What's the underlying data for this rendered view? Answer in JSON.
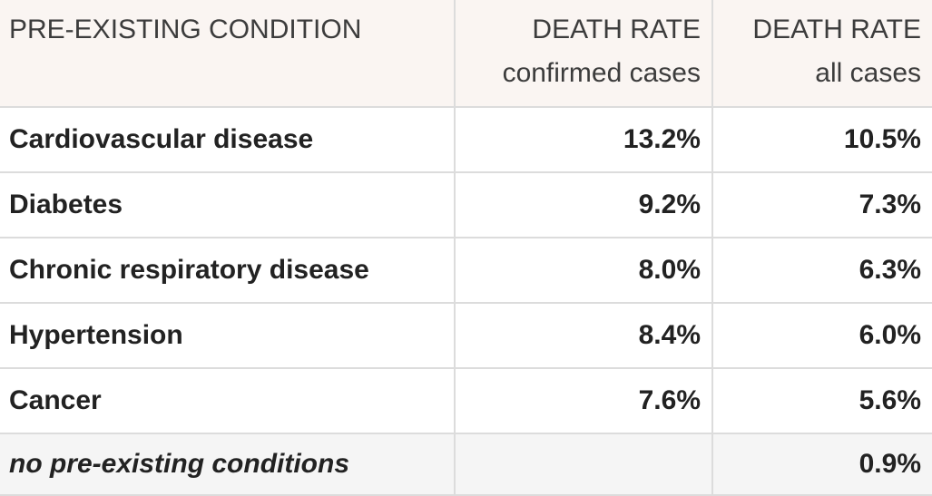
{
  "table": {
    "columns": [
      {
        "label": "PRE-EXISTING CONDITION",
        "sublabel": ""
      },
      {
        "label": "DEATH RATE",
        "sublabel": "confirmed cases"
      },
      {
        "label": "DEATH RATE",
        "sublabel": "all cases"
      }
    ],
    "rows": [
      {
        "condition": "Cardiovascular disease",
        "confirmed": "13.2%",
        "all": "10.5%",
        "italic": false,
        "highlight": false
      },
      {
        "condition": "Diabetes",
        "confirmed": "9.2%",
        "all": "7.3%",
        "italic": false,
        "highlight": false
      },
      {
        "condition": "Chronic respiratory disease",
        "confirmed": "8.0%",
        "all": "6.3%",
        "italic": false,
        "highlight": false
      },
      {
        "condition": "Hypertension",
        "confirmed": "8.4%",
        "all": "6.0%",
        "italic": false,
        "highlight": false
      },
      {
        "condition": "Cancer",
        "confirmed": "7.6%",
        "all": "5.6%",
        "italic": false,
        "highlight": false
      },
      {
        "condition": "no pre-existing conditions",
        "confirmed": "",
        "all": "0.9%",
        "italic": true,
        "highlight": true
      }
    ]
  },
  "colors": {
    "bg": "#ffffff",
    "header_bg": "#faf5f2",
    "highlight_bg": "#f5f5f5",
    "border": "#dcdcdc",
    "text": "#222222",
    "header_text": "#3c3c3c"
  },
  "chart_data": {
    "type": "table",
    "title": "",
    "columns": [
      "PRE-EXISTING CONDITION",
      "DEATH RATE confirmed cases",
      "DEATH RATE all cases"
    ],
    "rows": [
      [
        "Cardiovascular disease",
        13.2,
        10.5
      ],
      [
        "Diabetes",
        9.2,
        7.3
      ],
      [
        "Chronic respiratory disease",
        8.0,
        6.3
      ],
      [
        "Hypertension",
        8.4,
        6.0
      ],
      [
        "Cancer",
        7.6,
        5.6
      ],
      [
        "no pre-existing conditions",
        null,
        0.9
      ]
    ],
    "units": "percent",
    "notes": "empty cell for no pre-existing conditions under confirmed cases"
  }
}
